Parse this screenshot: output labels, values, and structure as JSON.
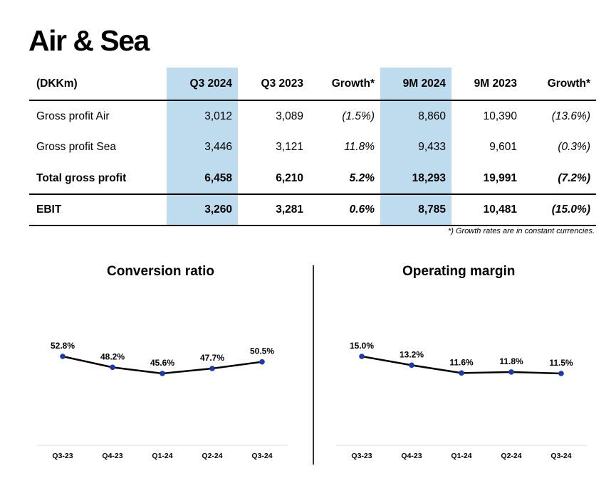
{
  "title": "Air & Sea",
  "table": {
    "headers": [
      "(DKKm)",
      "Q3 2024",
      "Q3 2023",
      "Growth*",
      "9M 2024",
      "9M 2023",
      "Growth*"
    ],
    "rows": [
      {
        "label": "Gross profit Air",
        "q3_2024": "3,012",
        "q3_2023": "3,089",
        "growth_q3": "(1.5%)",
        "m9_2024": "8,860",
        "m9_2023": "10,390",
        "growth_9m": "(13.6%)"
      },
      {
        "label": "Gross profit Sea",
        "q3_2024": "3,446",
        "q3_2023": "3,121",
        "growth_q3": "11.8%",
        "m9_2024": "9,433",
        "m9_2023": "9,601",
        "growth_9m": "(0.3%)"
      },
      {
        "label": "Total gross profit",
        "q3_2024": "6,458",
        "q3_2023": "6,210",
        "growth_q3": "5.2%",
        "m9_2024": "18,293",
        "m9_2023": "19,991",
        "growth_9m": "(7.2%)"
      },
      {
        "label": "EBIT",
        "q3_2024": "3,260",
        "q3_2023": "3,281",
        "growth_q3": "0.6%",
        "m9_2024": "8,785",
        "m9_2023": "10,481",
        "growth_9m": "(15.0%)"
      }
    ],
    "footnote": "*) Growth rates are in constant currencies."
  },
  "colors": {
    "highlight": "#bfdcef",
    "marker": "#1f3aa6",
    "line": "#000000"
  },
  "chart_data": [
    {
      "type": "line",
      "title": "Conversion ratio",
      "categories": [
        "Q3-23",
        "Q4-23",
        "Q1-24",
        "Q2-24",
        "Q3-24"
      ],
      "values": [
        52.8,
        48.2,
        45.6,
        47.7,
        50.5
      ],
      "labels": [
        "52.8%",
        "48.2%",
        "45.6%",
        "47.7%",
        "50.5%"
      ],
      "unit": "%",
      "xlabel": "",
      "ylabel": "",
      "grid": false
    },
    {
      "type": "line",
      "title": "Operating margin",
      "categories": [
        "Q3-23",
        "Q4-23",
        "Q1-24",
        "Q2-24",
        "Q3-24"
      ],
      "values": [
        15.0,
        13.2,
        11.6,
        11.8,
        11.5
      ],
      "labels": [
        "15.0%",
        "13.2%",
        "11.6%",
        "11.8%",
        "11.5%"
      ],
      "unit": "%",
      "xlabel": "",
      "ylabel": "",
      "grid": false
    }
  ]
}
